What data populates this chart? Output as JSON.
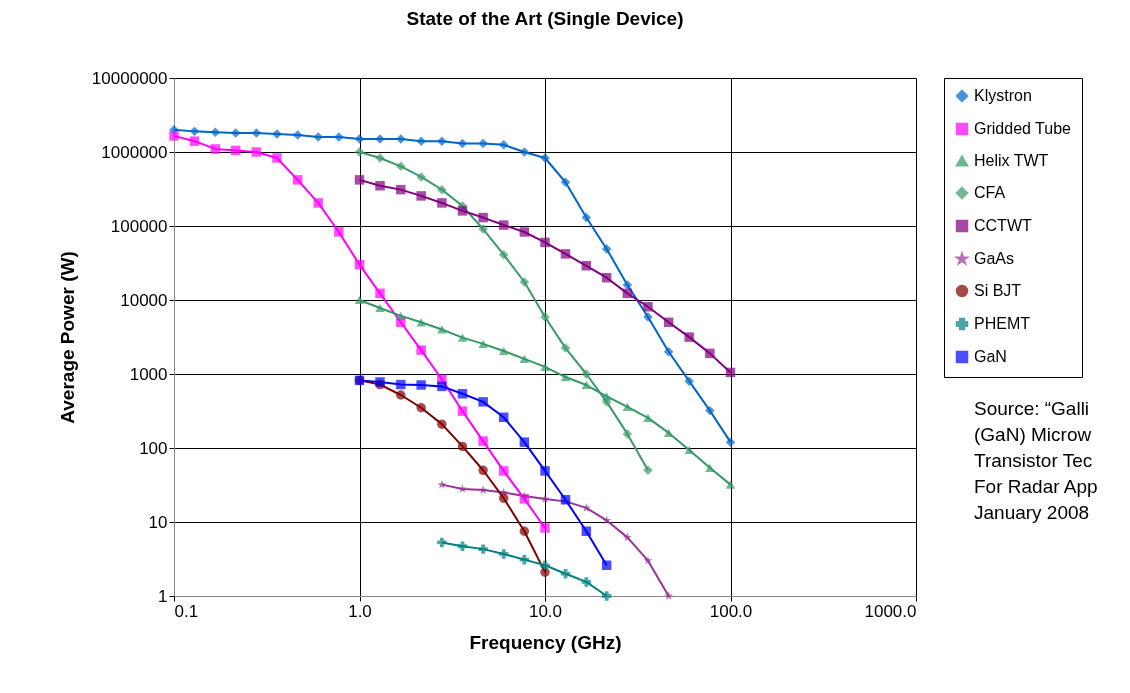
{
  "chart_data": {
    "type": "line",
    "title": "State of the Art (Single Device)",
    "xlabel": "Frequency (GHz)",
    "ylabel": "Average Power (W)",
    "log": "xy",
    "grid": true,
    "legend": "top right",
    "xlim": [
      0.1,
      1000
    ],
    "xticks": [
      0.1,
      {
        "value": 1,
        "label": "1.0"
      },
      {
        "value": 10,
        "label": "10.0"
      },
      {
        "value": 100,
        "label": "100.0"
      },
      {
        "value": 1000,
        "label": "1000.0"
      }
    ],
    "ylim": [
      1,
      10000000
    ],
    "yticks": [
      1,
      10,
      100,
      1000,
      10000,
      100000,
      1000000,
      10000000
    ],
    "annotations": [
      "Source: “Galli",
      "(GaN) Microw",
      "Transistor  Tec",
      "For Radar App",
      "January 2008"
    ],
    "series": [
      {
        "name": "Klystron",
        "color": "#0066cc",
        "marker": "diamond",
        "x": [
          0.1,
          0.129,
          0.167,
          0.215,
          0.278,
          0.359,
          0.464,
          0.599,
          0.774,
          1.0,
          1.29,
          1.67,
          2.15,
          2.78,
          3.59,
          4.64,
          5.99,
          7.74,
          10,
          12.9,
          16.7,
          21.5,
          27.8,
          35.9,
          46.4,
          59.9,
          77.4,
          100
        ],
        "values": [
          2000000,
          1900000,
          1850000,
          1800000,
          1800000,
          1750000,
          1700000,
          1600000,
          1600000,
          1500000,
          1500000,
          1500000,
          1400000,
          1400000,
          1300000,
          1300000,
          1250000,
          1000000,
          830000,
          390000,
          130000,
          49000,
          16000,
          5900,
          2000,
          800,
          320,
          120
        ]
      },
      {
        "name": "Gridded Tube",
        "color": "#ff00ff",
        "marker": "square",
        "x": [
          0.1,
          0.129,
          0.167,
          0.215,
          0.278,
          0.359,
          0.464,
          0.599,
          0.774,
          1.0,
          1.29,
          1.67,
          2.15,
          2.78,
          3.59,
          4.64,
          5.99,
          7.74,
          10
        ],
        "values": [
          1650000,
          1400000,
          1100000,
          1050000,
          1000000,
          830000,
          420000,
          205000,
          83000,
          30000,
          12300,
          5000,
          2100,
          850,
          315,
          124,
          49,
          20.5,
          8.3
        ]
      },
      {
        "name": "Helix TWT",
        "color": "#339966",
        "marker": "triangle",
        "x": [
          1.0,
          1.29,
          1.67,
          2.15,
          2.78,
          3.59,
          4.64,
          5.99,
          7.74,
          10,
          12.9,
          16.7,
          21.5,
          27.8,
          35.9,
          46.4,
          59.9,
          77.4,
          100
        ],
        "values": [
          10000,
          7800,
          6100,
          5000,
          4000,
          3100,
          2550,
          2050,
          1600,
          1250,
          910,
          710,
          500,
          360,
          255,
          160,
          94,
          54,
          32
        ]
      },
      {
        "name": "CFA",
        "color": "#3c9a6a",
        "marker": "diamond",
        "x": [
          1.0,
          1.29,
          1.67,
          2.15,
          2.78,
          3.59,
          4.64,
          5.99,
          7.74,
          10,
          12.9,
          16.7,
          21.5,
          27.8,
          35.9
        ],
        "values": [
          1000000,
          830000,
          640000,
          460000,
          310000,
          186000,
          91000,
          41000,
          17500,
          5900,
          2240,
          1000,
          420,
          155,
          50
        ]
      },
      {
        "name": "CCTWT",
        "color": "#800080",
        "marker": "square",
        "x": [
          1.0,
          1.29,
          1.67,
          2.15,
          2.78,
          3.59,
          4.64,
          5.99,
          7.74,
          10,
          12.9,
          16.7,
          21.5,
          27.8,
          35.9,
          46.4,
          59.9,
          77.4,
          100
        ],
        "values": [
          420000,
          350000,
          310000,
          255000,
          205000,
          160000,
          130000,
          103000,
          83000,
          60000,
          42000,
          29000,
          20000,
          12300,
          8100,
          5000,
          3150,
          1900,
          1050
        ]
      },
      {
        "name": "GaAs",
        "color": "#993399",
        "marker": "star",
        "x": [
          2.78,
          3.59,
          4.64,
          5.99,
          7.74,
          10,
          12.9,
          16.7,
          21.5,
          27.8,
          35.9,
          46.4
        ],
        "values": [
          32,
          28,
          27,
          25,
          22.5,
          20.5,
          19,
          15.5,
          10.5,
          6.2,
          3,
          1
        ]
      },
      {
        "name": "Si BJT",
        "color": "#800000",
        "marker": "circle",
        "x": [
          1.0,
          1.29,
          1.67,
          2.15,
          2.78,
          3.59,
          4.64,
          5.99,
          7.74,
          10
        ],
        "values": [
          820,
          720,
          520,
          350,
          210,
          105,
          50,
          21,
          7.5,
          2.1
        ]
      },
      {
        "name": "PHEMT",
        "color": "#008080",
        "marker": "cross",
        "x": [
          2.78,
          3.59,
          4.64,
          5.99,
          7.74,
          10,
          12.9,
          16.7,
          21.5
        ],
        "values": [
          5.3,
          4.7,
          4.3,
          3.7,
          3.1,
          2.6,
          2.0,
          1.55,
          1.0
        ]
      },
      {
        "name": "GaN",
        "color": "#0000ff",
        "marker": "square",
        "x": [
          1.0,
          1.29,
          1.67,
          2.15,
          2.78,
          3.59,
          4.64,
          5.99,
          7.74,
          10,
          12.9,
          16.7,
          21.5
        ],
        "values": [
          820,
          780,
          720,
          710,
          680,
          540,
          420,
          260,
          120,
          49,
          20,
          7.5,
          2.6
        ]
      }
    ]
  }
}
